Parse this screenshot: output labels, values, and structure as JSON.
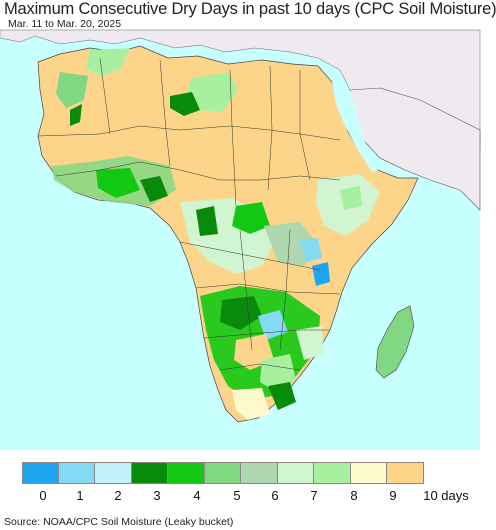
{
  "header": {
    "title": "Maximum Consecutive Dry Days in past 10 days (CPC Soil Moisture)",
    "date_range": "Mar. 11 to Mar. 20, 2025"
  },
  "legend": {
    "colors": [
      "#1ea6f0",
      "#84d9f5",
      "#c2f0fa",
      "#0a8a0a",
      "#12c812",
      "#82d882",
      "#b0d8b0",
      "#d0f5d0",
      "#a8f0a0",
      "#fffacd",
      "#fdd58a"
    ],
    "labels": [
      "0",
      "1",
      "2",
      "3",
      "4",
      "5",
      "6",
      "7",
      "8",
      "9",
      "10 days"
    ]
  },
  "map": {
    "ocean_color": "#c8ffff",
    "outside_land_color": "#eeeaf0",
    "dominant_land_color": "#fdd58a"
  },
  "footer": {
    "source": "Source: NOAA/CPC Soil Moisture (Leaky bucket)"
  }
}
